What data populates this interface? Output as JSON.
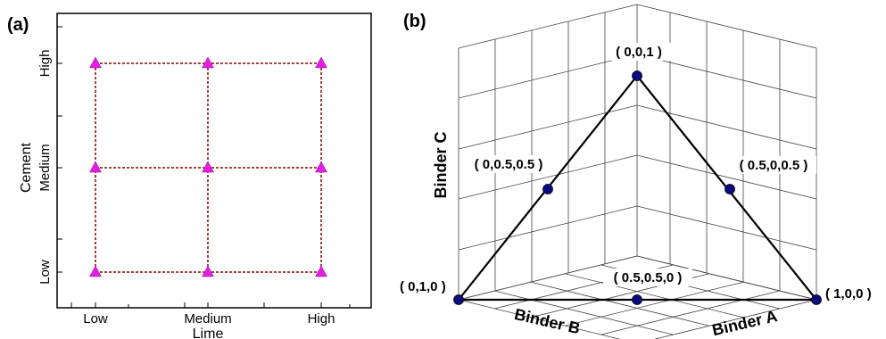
{
  "colors": {
    "grid_line": "#8b0000",
    "triangle_marker": "#e020e0",
    "ternary_point": "#0a0a80",
    "frame": "#000000"
  },
  "panel_a": {
    "label": "(a)",
    "x_axis_title": "Lime",
    "y_axis_title": "Cement",
    "x_ticks": [
      "Low",
      "Medium",
      "High"
    ],
    "y_ticks": [
      "Low",
      "Medium",
      "High"
    ],
    "marker": "triangle-up"
  },
  "panel_b": {
    "label": "(b)",
    "axis_c": "Binder C",
    "axis_b": "Binder B",
    "axis_a": "Binder A",
    "point_labels": {
      "top": "( 0,0,1 )",
      "left_mid": "( 0,0.5,0.5 )",
      "right_mid": "( 0.5,0,0.5 )",
      "left": "( 0,1,0 )",
      "bottom_mid": "( 0.5,0.5,0 )",
      "right": "( 1,0,0 )"
    }
  }
}
